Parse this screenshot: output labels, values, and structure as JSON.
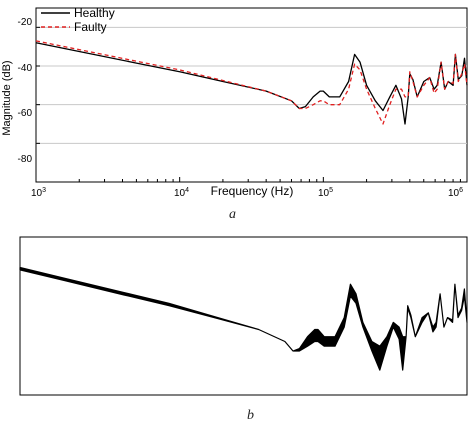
{
  "chart_data": [
    {
      "type": "line",
      "caption": "a",
      "xlabel": "Frequency (Hz)",
      "ylabel": "Magnitude (dB)",
      "xscale": "log",
      "xlim": [
        1000,
        1000000
      ],
      "ylim": [
        -100,
        -10
      ],
      "x_ticks": [
        {
          "value": 1000,
          "base": "10",
          "exp": "3"
        },
        {
          "value": 10000,
          "base": "10",
          "exp": "4"
        },
        {
          "value": 100000,
          "base": "10",
          "exp": "5"
        },
        {
          "value": 1000000,
          "base": "10",
          "exp": "6"
        }
      ],
      "y_ticks": [
        -20,
        -40,
        -60,
        -80
      ],
      "grid": "horizontal",
      "legend_position": "top-left",
      "series": [
        {
          "name": "Healthy",
          "color": "#000000",
          "dash": "solid",
          "x": [
            1000,
            2000,
            5000,
            10000,
            20000,
            40000,
            60000,
            68000,
            75000,
            85000,
            95000,
            100000,
            110000,
            130000,
            150000,
            165000,
            180000,
            200000,
            230000,
            260000,
            290000,
            320000,
            350000,
            370000,
            390000,
            400000,
            420000,
            450000,
            500000,
            550000,
            590000,
            620000,
            660000,
            700000,
            740000,
            800000,
            830000,
            870000,
            920000,
            960000,
            1000000
          ],
          "y": [
            -28,
            -32.5,
            -38.5,
            -43,
            -48,
            -53,
            -58,
            -62,
            -61,
            -56,
            -53,
            -53,
            -56,
            -56,
            -48,
            -34,
            -38,
            -50,
            -58,
            -63,
            -56,
            -50,
            -57,
            -70,
            -56,
            -44,
            -47,
            -56,
            -48,
            -46,
            -52,
            -50,
            -38,
            -52,
            -48,
            -50,
            -34,
            -47,
            -45,
            -36,
            -50
          ]
        },
        {
          "name": "Faulty",
          "color": "#e02020",
          "dash": "dashed",
          "x": [
            1000,
            2000,
            5000,
            10000,
            20000,
            40000,
            60000,
            68000,
            75000,
            85000,
            95000,
            100000,
            110000,
            130000,
            150000,
            165000,
            180000,
            200000,
            230000,
            260000,
            290000,
            320000,
            350000,
            370000,
            390000,
            400000,
            420000,
            450000,
            500000,
            550000,
            590000,
            620000,
            660000,
            700000,
            740000,
            800000,
            830000,
            870000,
            920000,
            960000,
            1000000
          ],
          "y": [
            -27,
            -31.5,
            -37.5,
            -42,
            -47.5,
            -53,
            -58,
            -62,
            -62,
            -60,
            -58,
            -58,
            -60,
            -60,
            -52,
            -39,
            -42,
            -52,
            -62,
            -70,
            -60,
            -52,
            -52,
            -56,
            -56,
            -43,
            -48,
            -56,
            -50,
            -46,
            -54,
            -52,
            -38,
            -52,
            -48,
            -49,
            -34,
            -48,
            -44,
            -39,
            -50
          ]
        }
      ]
    },
    {
      "type": "line",
      "caption": "b",
      "xscale": "log",
      "xlim": [
        1000,
        1000000
      ],
      "ylim": [
        -100,
        -10
      ],
      "series": [
        {
          "color": "#000000",
          "x": [
            1000,
            2000,
            5000,
            10000,
            20000,
            40000,
            60000,
            68000,
            75000,
            85000,
            95000,
            100000,
            110000,
            130000,
            150000,
            165000,
            180000,
            200000,
            230000,
            260000,
            290000,
            320000,
            350000,
            370000,
            390000,
            400000,
            420000,
            450000,
            500000,
            550000,
            590000,
            620000,
            660000,
            700000,
            740000,
            800000,
            830000,
            870000,
            920000,
            960000,
            1000000
          ],
          "upper": [
            -27,
            -31.5,
            -37.5,
            -42,
            -47.5,
            -53,
            -58,
            -62,
            -61,
            -56,
            -53,
            -53,
            -56,
            -56,
            -48,
            -34,
            -38,
            -50,
            -58,
            -60,
            -56,
            -50,
            -52,
            -56,
            -56,
            -43,
            -47,
            -56,
            -48,
            -46,
            -52,
            -50,
            -38,
            -52,
            -48,
            -49,
            -34,
            -47,
            -44,
            -36,
            -50
          ],
          "lower": [
            -28,
            -32.5,
            -38.5,
            -43,
            -48,
            -53,
            -58,
            -62,
            -62,
            -60,
            -58,
            -58,
            -60,
            -60,
            -52,
            -39,
            -42,
            -52,
            -62,
            -70,
            -60,
            -52,
            -57,
            -70,
            -56,
            -44,
            -48,
            -56,
            -50,
            -46,
            -54,
            -52,
            -38,
            -52,
            -48,
            -50,
            -34,
            -48,
            -45,
            -39,
            -50
          ]
        }
      ]
    }
  ]
}
